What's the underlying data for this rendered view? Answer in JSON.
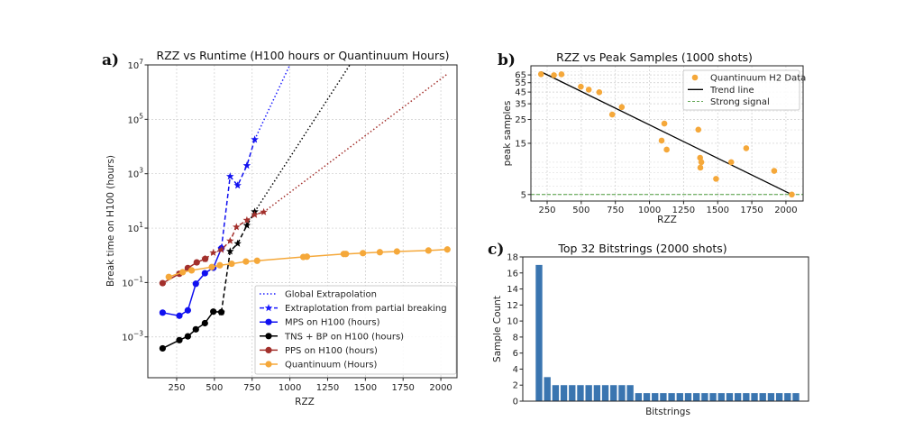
{
  "chart_data": [
    {
      "panel_label": "a)",
      "type": "line",
      "title": "RZZ vs Runtime (H100 hours or Quantinuum Hours)",
      "xlabel": "RZZ",
      "ylabel": "Break time on H100 (hours)",
      "xlim": [
        59,
        2107
      ],
      "ylim_log10": [
        -4.5,
        7
      ],
      "yscale": "log",
      "grid": true,
      "legend_placement": "lower-right",
      "x_ticks": [
        250,
        500,
        750,
        1000,
        1250,
        1500,
        1750,
        2000
      ],
      "x_tick_labels": [
        "250",
        "500",
        "750",
        "1000",
        "1250",
        "1500",
        "1750",
        "2000"
      ],
      "y_ticks_exp": [
        -3,
        -1,
        1,
        3,
        5,
        7
      ],
      "y_tick_labels": [
        {
          "base": "10",
          "exp": "−3"
        },
        {
          "base": "10",
          "exp": "−1"
        },
        {
          "base": "10",
          "exp": "1"
        },
        {
          "base": "10",
          "exp": "3"
        },
        {
          "base": "10",
          "exp": "5"
        },
        {
          "base": "10",
          "exp": "7"
        }
      ],
      "legend": [
        {
          "label": "Global Extrapolation",
          "style": "dotted",
          "marker": "none",
          "color": "#1a1aff"
        },
        {
          "label": "Extraplotation from partial breaking",
          "style": "dashed",
          "marker": "star",
          "color": "#1a1aff"
        },
        {
          "label": "MPS on H100 (hours)",
          "style": "solid",
          "marker": "circle",
          "color": "#1010f0"
        },
        {
          "label": "TNS + BP on H100 (hours)",
          "style": "solid",
          "marker": "circle",
          "color": "#000000"
        },
        {
          "label": "PPS on H100 (hours)",
          "style": "solid",
          "marker": "circle",
          "color": "#a3302c"
        },
        {
          "label": "Quantinuum (Hours)",
          "style": "solid",
          "marker": "circle",
          "color": "#f5a83a"
        }
      ],
      "series": [
        {
          "id": "mps",
          "color": "#1010f0",
          "style": "solid",
          "marker": "circle",
          "x": [
            157,
            268,
            324,
            377,
            437,
            493,
            546
          ],
          "y": [
            0.0078,
            0.006,
            0.0095,
            0.09,
            0.22,
            0.35,
            1.8
          ]
        },
        {
          "id": "mps-extrap",
          "color": "#1010f0",
          "style": "dashed",
          "marker": "star",
          "x": [
            546,
            604,
            654,
            715,
            767
          ],
          "y": [
            1.8,
            800,
            370,
            2000,
            18000
          ]
        },
        {
          "id": "mps-global",
          "color": "#1a1aff",
          "style": "dotted",
          "marker": "none",
          "x": [
            767,
            1000
          ],
          "y": [
            18000,
            10000000
          ]
        },
        {
          "id": "tns",
          "color": "#000000",
          "style": "solid",
          "marker": "circle",
          "x": [
            157,
            268,
            324,
            377,
            437,
            493,
            546
          ],
          "y": [
            0.00038,
            0.00076,
            0.00105,
            0.0019,
            0.0032,
            0.0085,
            0.0081
          ]
        },
        {
          "id": "tns-extrap",
          "color": "#000000",
          "style": "dashed",
          "marker": "star",
          "x": [
            546,
            604,
            654,
            715,
            767
          ],
          "y": [
            0.0081,
            1.4,
            2.7,
            12.6,
            40
          ]
        },
        {
          "id": "tns-global",
          "color": "#000000",
          "style": "dotted",
          "marker": "none",
          "x": [
            767,
            1397
          ],
          "y": [
            40,
            10000000
          ]
        },
        {
          "id": "pps",
          "color": "#a3302c",
          "style": "solid",
          "marker": "circle",
          "x": [
            157,
            268,
            324,
            383,
            439
          ],
          "y": [
            0.095,
            0.21,
            0.34,
            0.55,
            0.74
          ]
        },
        {
          "id": "pps-extrap",
          "color": "#a3302c",
          "style": "dashed",
          "marker": "star",
          "x": [
            439,
            493,
            546,
            604,
            646,
            715,
            767,
            827
          ],
          "y": [
            0.74,
            1.24,
            1.6,
            3.4,
            11,
            19.5,
            31,
            39
          ]
        },
        {
          "id": "pps-global",
          "color": "#a3302c",
          "style": "dotted",
          "marker": "none",
          "x": [
            827,
            2045
          ],
          "y": [
            39,
            4700000
          ]
        },
        {
          "id": "quantinuum",
          "color": "#f5a83a",
          "style": "solid",
          "marker": "circle",
          "x": [
            198,
            290,
            349,
            483,
            536,
            614,
            709,
            783,
            1089,
            1113,
            1357,
            1371,
            1484,
            1596,
            1709,
            1918,
            2043
          ],
          "y": [
            0.16,
            0.24,
            0.28,
            0.37,
            0.43,
            0.49,
            0.59,
            0.63,
            0.87,
            0.89,
            1.12,
            1.12,
            1.2,
            1.3,
            1.38,
            1.5,
            1.64
          ]
        }
      ]
    },
    {
      "panel_label": "b)",
      "type": "scatter",
      "title": "RZZ vs Peak Samples (1000 shots)",
      "xlabel": "RZZ",
      "ylabel": "peak samples",
      "xlim": [
        131,
        2126
      ],
      "ylim": [
        4.35,
        79
      ],
      "yscale": "log",
      "grid": true,
      "legend_placement": "top-right",
      "x_ticks": [
        250,
        500,
        750,
        1000,
        1250,
        1500,
        1750,
        2000
      ],
      "x_tick_labels": [
        "250",
        "500",
        "750",
        "1000",
        "1250",
        "1500",
        "1750",
        "2000"
      ],
      "y_ticks": [
        5,
        15,
        25,
        35,
        45,
        55,
        65
      ],
      "y_tick_labels": [
        "5",
        "15",
        "25",
        "35",
        "45",
        "55",
        "65"
      ],
      "legend": [
        {
          "label": "Quantinuum H2 Data",
          "marker": "circle",
          "color": "#f5a83a"
        },
        {
          "label": "Trend line",
          "style": "solid",
          "color": "#000000"
        },
        {
          "label": "Strong signal",
          "style": "dashed",
          "color": "#4a9a3a"
        }
      ],
      "points": {
        "color": "#f5a83a",
        "x": [
          205,
          300,
          355,
          497,
          555,
          632,
          727,
          797,
          1089,
          1109,
          1126,
          1358,
          1371,
          1380,
          1373,
          1488,
          1599,
          1709,
          1914,
          2043
        ],
        "y": [
          66,
          64.6,
          65.8,
          50.5,
          47.4,
          44.8,
          27.8,
          32.6,
          15.9,
          22.9,
          13.1,
          20.1,
          11.0,
          10.0,
          8.9,
          7.0,
          10.0,
          13.5,
          8.3,
          5.0
        ]
      },
      "trend_line": {
        "color": "#000000",
        "x": [
          205,
          2043
        ],
        "y": [
          69.5,
          5
        ]
      },
      "strong_signal": {
        "color": "#4a9a3a",
        "y": 5
      }
    },
    {
      "panel_label": "c)",
      "type": "bar",
      "title": "Top 32 Bitstrings (2000 shots)",
      "xlabel": "Bitstrings",
      "ylabel": "Sample Count",
      "ylim": [
        0,
        18
      ],
      "grid": false,
      "color": "#3a75b0",
      "y_ticks": [
        0,
        2,
        4,
        6,
        8,
        10,
        12,
        14,
        16,
        18
      ],
      "y_tick_labels": [
        "0",
        "2",
        "4",
        "6",
        "8",
        "10",
        "12",
        "14",
        "16",
        "18"
      ],
      "values": [
        17,
        3,
        2,
        2,
        2,
        2,
        2,
        2,
        2,
        2,
        2,
        2,
        1,
        1,
        1,
        1,
        1,
        1,
        1,
        1,
        1,
        1,
        1,
        1,
        1,
        1,
        1,
        1,
        1,
        1,
        1,
        1
      ]
    }
  ]
}
